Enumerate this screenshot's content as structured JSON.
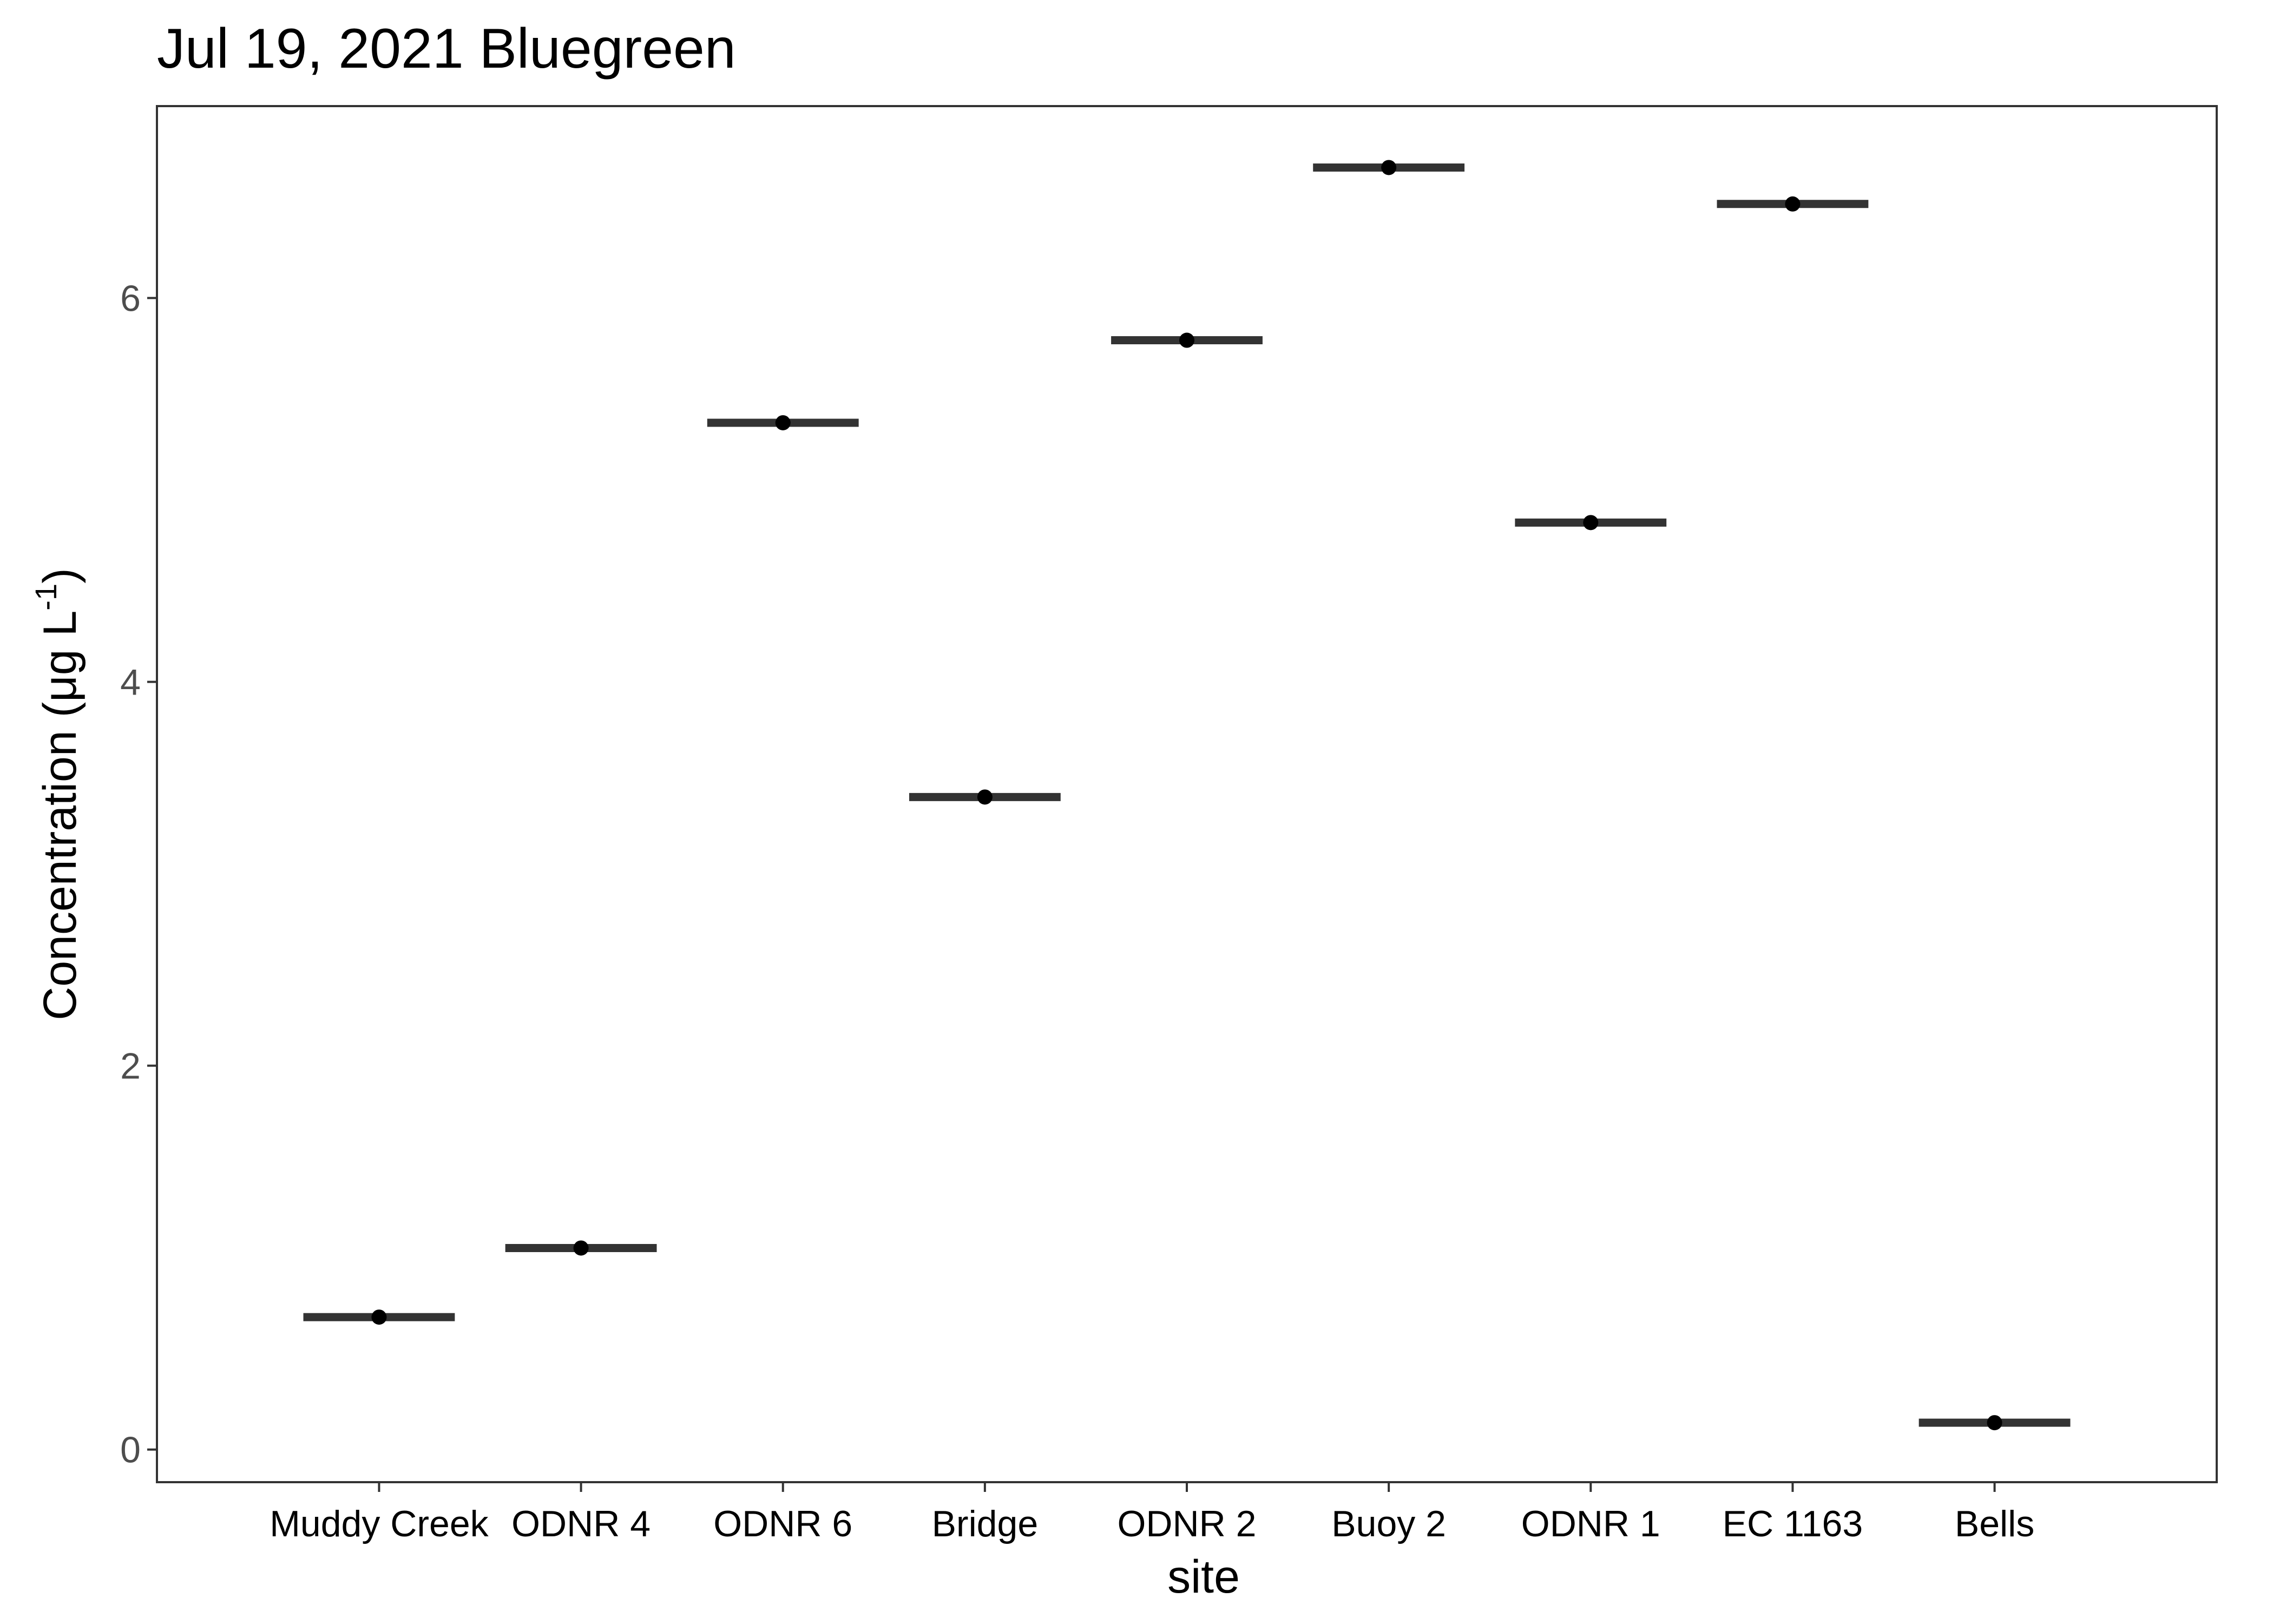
{
  "chart_data": {
    "type": "scatter",
    "title": "Jul 19, 2021 Bluegreen",
    "xlabel": "site",
    "ylabel": "Concentration (μg L-1)",
    "ylabel_parts": {
      "main": "Concentration (μg L",
      "sup": "-1",
      "close": ")"
    },
    "categories": [
      "Muddy Creek",
      "ODNR 4",
      "ODNR 6",
      "Bridge",
      "ODNR 2",
      "Buoy 2",
      "ODNR 1",
      "EC 1163",
      "Bells"
    ],
    "values": [
      0.69,
      1.05,
      5.35,
      3.4,
      5.78,
      6.68,
      4.83,
      6.49,
      0.14
    ],
    "yticks": [
      0,
      2,
      4,
      6
    ],
    "ylim": [
      -0.17,
      7.0
    ],
    "grid": false,
    "legend": "none",
    "colors": {
      "mean_bar": "#333333",
      "point": "#000000",
      "panel_border": "#333333",
      "tick_text": "#4d4d4d"
    }
  }
}
